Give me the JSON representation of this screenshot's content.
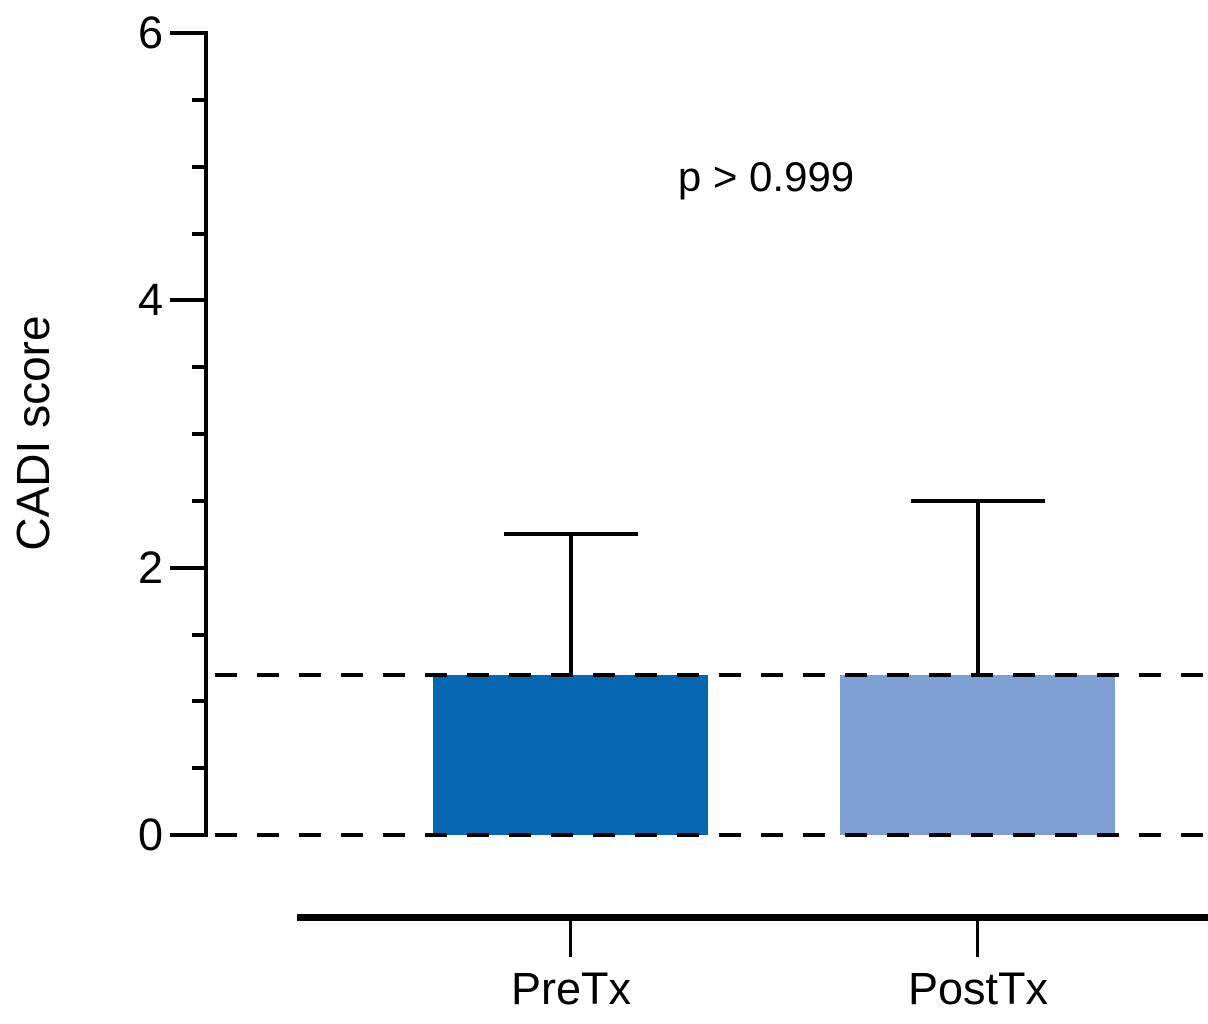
{
  "chart_data": {
    "type": "bar",
    "title": "",
    "ylabel": "CADI score",
    "xlabel": "",
    "categories": [
      "PreTx",
      "PostTx"
    ],
    "values": [
      1.2,
      1.2
    ],
    "error_upper": [
      1.05,
      1.3
    ],
    "error_bar_tops": [
      2.25,
      2.5
    ],
    "bar_colors": [
      "#0667b1",
      "#7d9fd4"
    ],
    "axis_color": "#000000",
    "background_color": "#ffffff",
    "ylim": [
      0,
      6
    ],
    "yticks": [
      0,
      2,
      4,
      6
    ],
    "ytick_labels": [
      "0",
      "2",
      "4",
      "6"
    ],
    "minor_tick_step": 0.5,
    "annotation": "p > 0.999",
    "reference_lines_y": [
      0,
      1.2
    ],
    "reference_line_style": "dashed",
    "grid": false,
    "legend": false
  }
}
